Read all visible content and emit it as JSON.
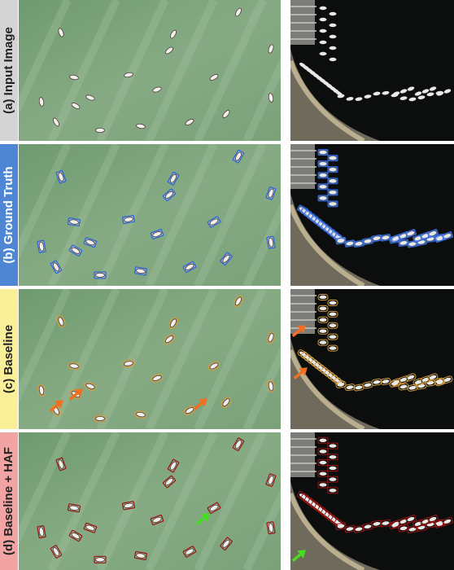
{
  "rows": [
    {
      "label": "(a) Input Image"
    },
    {
      "label": "(b) Ground Truth"
    },
    {
      "label": "(c) Baseline"
    },
    {
      "label": "(d) Baseline + HAF"
    }
  ]
}
